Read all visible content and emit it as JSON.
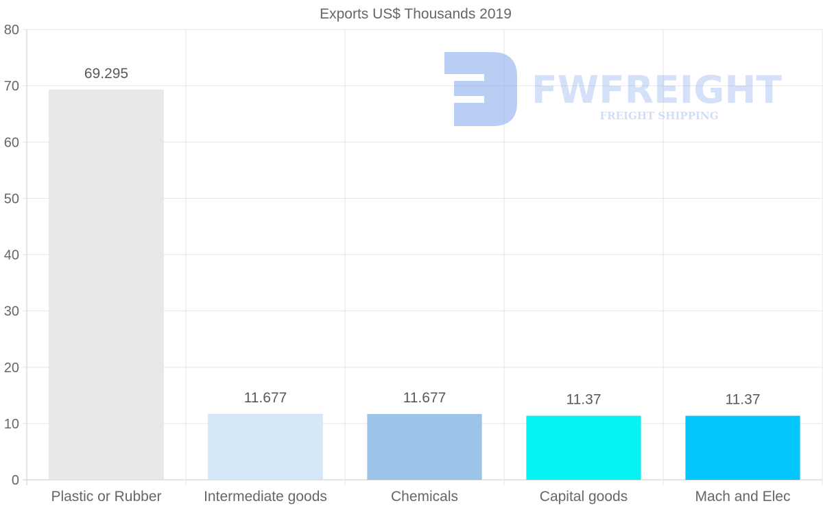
{
  "chart_data": {
    "type": "bar",
    "title": "Exports US$ Thousands 2019",
    "categories": [
      "Plastic or Rubber",
      "Intermediate goods",
      "Chemicals",
      "Capital goods",
      "Mach and Elec"
    ],
    "values": [
      69.295,
      11.677,
      11.677,
      11.37,
      11.37
    ],
    "value_labels": [
      "69.295",
      "11.677",
      "11.677",
      "11.37",
      "11.37"
    ],
    "colors": [
      "#e8e8e8",
      "#d6e7f8",
      "#9cc4e8",
      "#05f3f5",
      "#05c6fc"
    ],
    "ylim": [
      0,
      80
    ],
    "yticks": [
      0,
      10,
      20,
      30,
      40,
      50,
      60,
      70,
      80
    ],
    "xlabel": "",
    "ylabel": "",
    "grid": true,
    "legend": "none"
  },
  "watermark": {
    "brand": "FWFREIGHT",
    "tagline": "FREIGHT SHIPPING",
    "color": "#7fa4ec"
  }
}
